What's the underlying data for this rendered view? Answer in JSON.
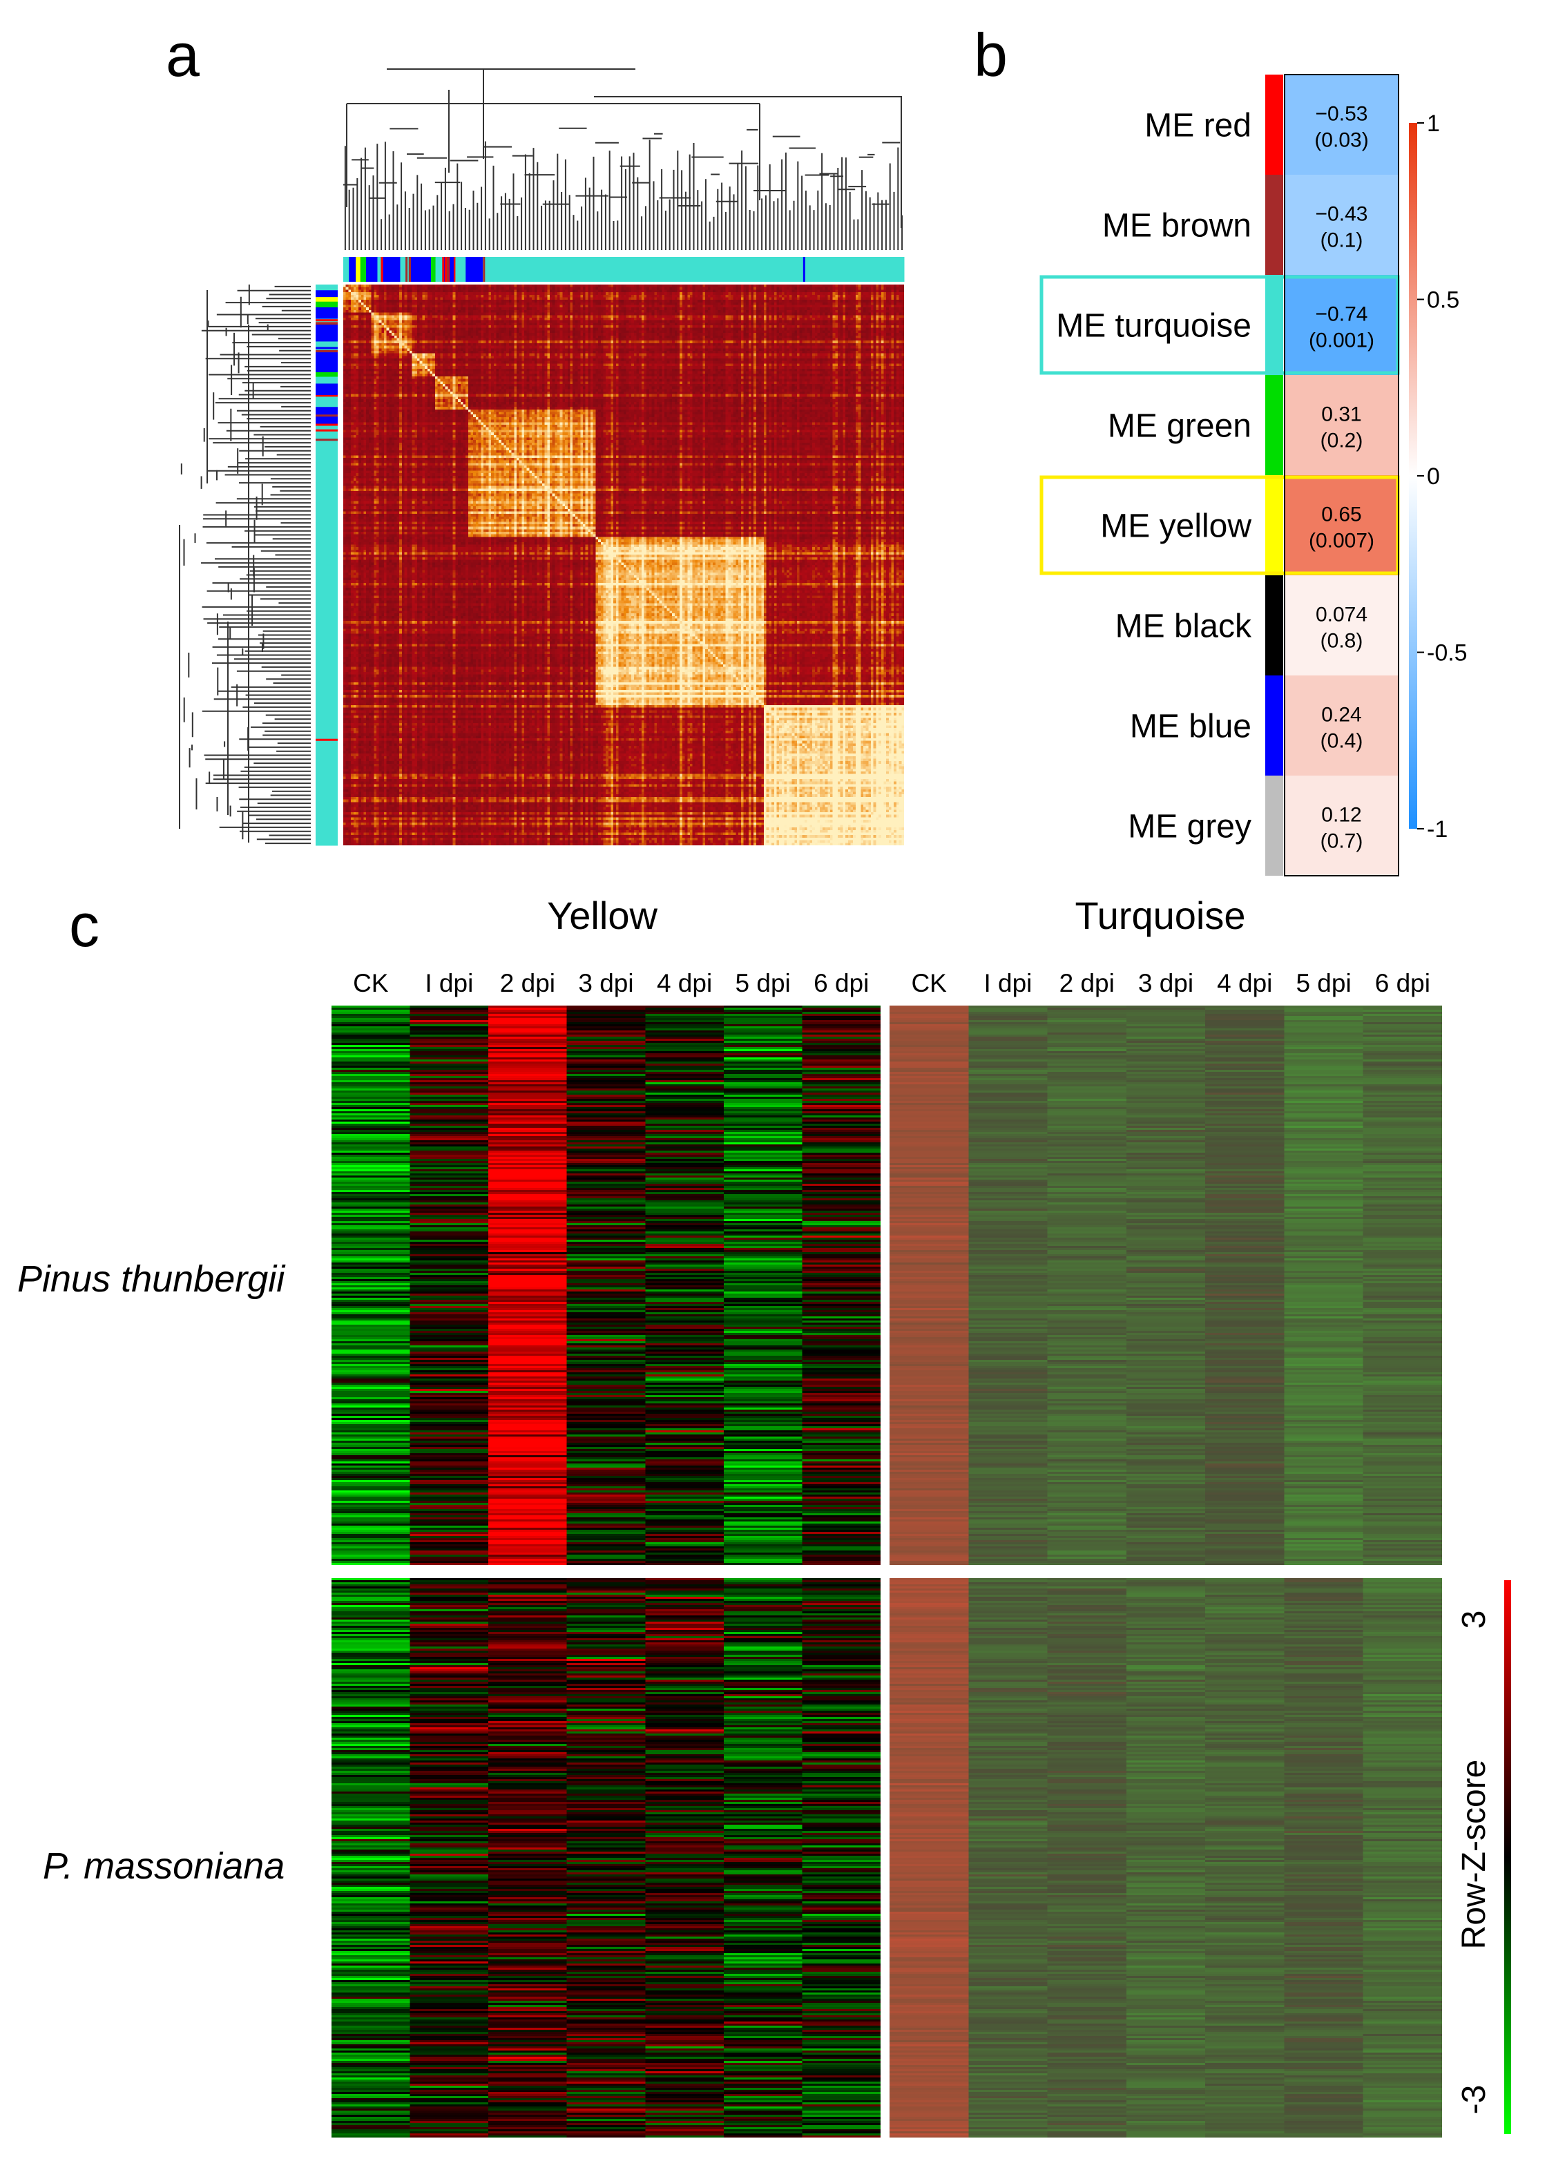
{
  "panels": {
    "a": "a",
    "b": "b",
    "c": "c"
  },
  "chart_data": [
    {
      "type": "heatmap",
      "panel": "a",
      "title": "",
      "description_tag": "TOM plot",
      "module_colors": [
        "turquoise",
        "blue",
        "yellow",
        "green",
        "brown",
        "red",
        "black",
        "grey"
      ],
      "axis_labels_shown": false
    },
    {
      "type": "heatmap",
      "panel": "b",
      "title": "",
      "rows": [
        {
          "label": "ME red",
          "color": "#ff0000",
          "corr": "−0.53",
          "p": "(0.03)",
          "value": -0.53
        },
        {
          "label": "ME brown",
          "color": "#a52a2a",
          "corr": "−0.43",
          "p": "(0.1)",
          "value": -0.43
        },
        {
          "label": "ME turquoise",
          "color": "#40e0d0",
          "corr": "−0.74",
          "p": "(0.001)",
          "value": -0.74,
          "highlight": "#40e0d0"
        },
        {
          "label": "ME green",
          "color": "#00dd00",
          "corr": "0.31",
          "p": "(0.2)",
          "value": 0.31
        },
        {
          "label": "ME yellow",
          "color": "#ffff00",
          "corr": "0.65",
          "p": "(0.007)",
          "value": 0.65,
          "highlight": "#ffee00"
        },
        {
          "label": "ME black",
          "color": "#000000",
          "corr": "0.074",
          "p": "(0.8)",
          "value": 0.074
        },
        {
          "label": "ME blue",
          "color": "#0000ff",
          "corr": "0.24",
          "p": "(0.4)",
          "value": 0.24
        },
        {
          "label": "ME grey",
          "color": "#bebebe",
          "corr": "0.12",
          "p": "(0.7)",
          "value": 0.12
        }
      ],
      "colorbar": {
        "range": [
          -1,
          1
        ],
        "ticks": [
          "1",
          "0.5",
          "0",
          "-0.5",
          "-1"
        ],
        "low_color": "#1e90ff",
        "mid_color": "#ffffff",
        "high_color": "#ff4500"
      }
    },
    {
      "type": "heatmap",
      "panel": "c",
      "groups": [
        "Yellow",
        "Turquoise"
      ],
      "columns": [
        "CK",
        "I dpi",
        "2 dpi",
        "3 dpi",
        "4 dpi",
        "5 dpi",
        "6 dpi"
      ],
      "species": [
        "Pinus thunbergii",
        "P. massoniana"
      ],
      "colorbar": {
        "title": "Row-Z-score",
        "range": [
          -3,
          3
        ],
        "ticks": [
          "3",
          "-3"
        ],
        "low_color": "#00ff00",
        "mid_color": "#000000",
        "high_color": "#ff0000"
      },
      "column_means": {
        "yellow_thunbergii": [
          -1.3,
          0.1,
          2.6,
          0.0,
          -0.1,
          -1.0,
          0.2
        ],
        "yellow_massoniana": [
          -1.2,
          0.2,
          0.6,
          0.2,
          0.3,
          -0.4,
          -0.2
        ],
        "turquoise_thunbergii": [
          1.2,
          -0.3,
          -0.5,
          -0.4,
          -0.1,
          -0.8,
          -0.5
        ],
        "turquoise_massoniana": [
          1.3,
          -0.3,
          -0.2,
          -0.5,
          -0.4,
          -0.2,
          -0.6
        ]
      }
    }
  ]
}
